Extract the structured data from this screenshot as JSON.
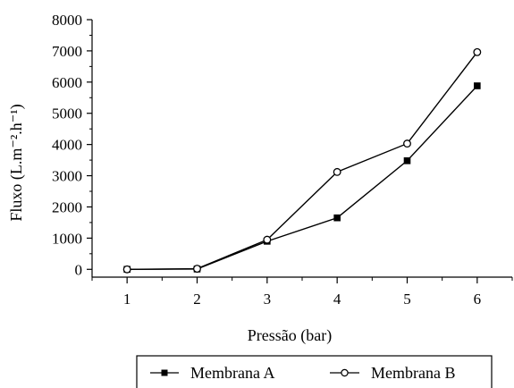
{
  "chart_data": {
    "type": "line",
    "xlabel": "Pressão (bar)",
    "ylabel": "Fluxo (L.m⁻².h⁻¹)",
    "x": [
      1,
      2,
      3,
      4,
      5,
      6
    ],
    "xlim": [
      0.5,
      6.5
    ],
    "ylim": [
      -250,
      8000
    ],
    "x_ticks": [
      "1",
      "2",
      "3",
      "4",
      "5",
      "6"
    ],
    "y_ticks": [
      "0",
      "1000",
      "2000",
      "3000",
      "4000",
      "5000",
      "6000",
      "7000",
      "8000"
    ],
    "y_tick_values": [
      0,
      1000,
      2000,
      3000,
      4000,
      5000,
      6000,
      7000,
      8000
    ],
    "grid": false,
    "legend_position": "bottom",
    "series": [
      {
        "name": "Membrana A",
        "marker": "filled-square",
        "values": [
          0,
          10,
          900,
          1650,
          3480,
          5880
        ]
      },
      {
        "name": "Membrana B",
        "marker": "open-circle",
        "values": [
          0,
          20,
          950,
          3120,
          4030,
          6960
        ]
      }
    ]
  },
  "colors": {
    "line": "#000000",
    "background": "#ffffff"
  }
}
